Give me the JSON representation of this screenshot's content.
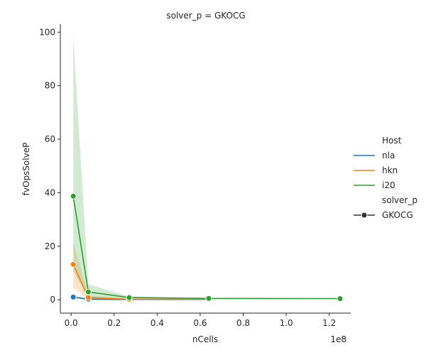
{
  "chart_data": {
    "type": "line",
    "title": "solver_p = GKOCG",
    "xlabel": "nCells",
    "ylabel": "fvOpsSolveP",
    "x_offset_text": "1e8",
    "xlim": [
      -0.05,
      1.3
    ],
    "ylim": [
      -5,
      103
    ],
    "x_ticks": [
      0.0,
      0.2,
      0.4,
      0.6,
      0.8,
      1.0,
      1.2
    ],
    "x_tick_labels": [
      "0.0",
      "0.2",
      "0.4",
      "0.6",
      "0.8",
      "1.0",
      "1.2"
    ],
    "y_ticks": [
      0,
      20,
      40,
      60,
      80,
      100
    ],
    "y_tick_labels": [
      "0",
      "20",
      "40",
      "60",
      "80",
      "100"
    ],
    "grid": false,
    "legend": {
      "placement": "right",
      "hue_title": "Host",
      "style_title": "solver_p",
      "style_entries": [
        "GKOCG"
      ]
    },
    "series": [
      {
        "name": "nla",
        "color": "#1f77b4",
        "x": [
          0.01,
          0.08,
          0.27,
          0.64
        ],
        "y": [
          1.0,
          0.2,
          0.1,
          0.1
        ],
        "ci_low": [
          0.6,
          0.0,
          0.0,
          0.0
        ],
        "ci_high": [
          1.3,
          0.5,
          0.3,
          0.3
        ]
      },
      {
        "name": "hkn",
        "color": "#ff7f0e",
        "x": [
          0.01,
          0.08,
          0.27,
          0.64
        ],
        "y": [
          13.2,
          0.8,
          0.2,
          0.2
        ],
        "ci_low": [
          4.5,
          0.2,
          0.1,
          0.1
        ],
        "ci_high": [
          21.5,
          1.6,
          0.4,
          0.4
        ]
      },
      {
        "name": "i20",
        "color": "#2ca02c",
        "x": [
          0.01,
          0.08,
          0.27,
          0.64,
          1.25
        ],
        "y": [
          38.7,
          2.9,
          0.8,
          0.5,
          0.4
        ],
        "ci_low": [
          11.0,
          0.4,
          0.4,
          0.3,
          0.3
        ],
        "ci_high": [
          98.5,
          5.8,
          1.2,
          0.7,
          0.5
        ]
      }
    ]
  }
}
